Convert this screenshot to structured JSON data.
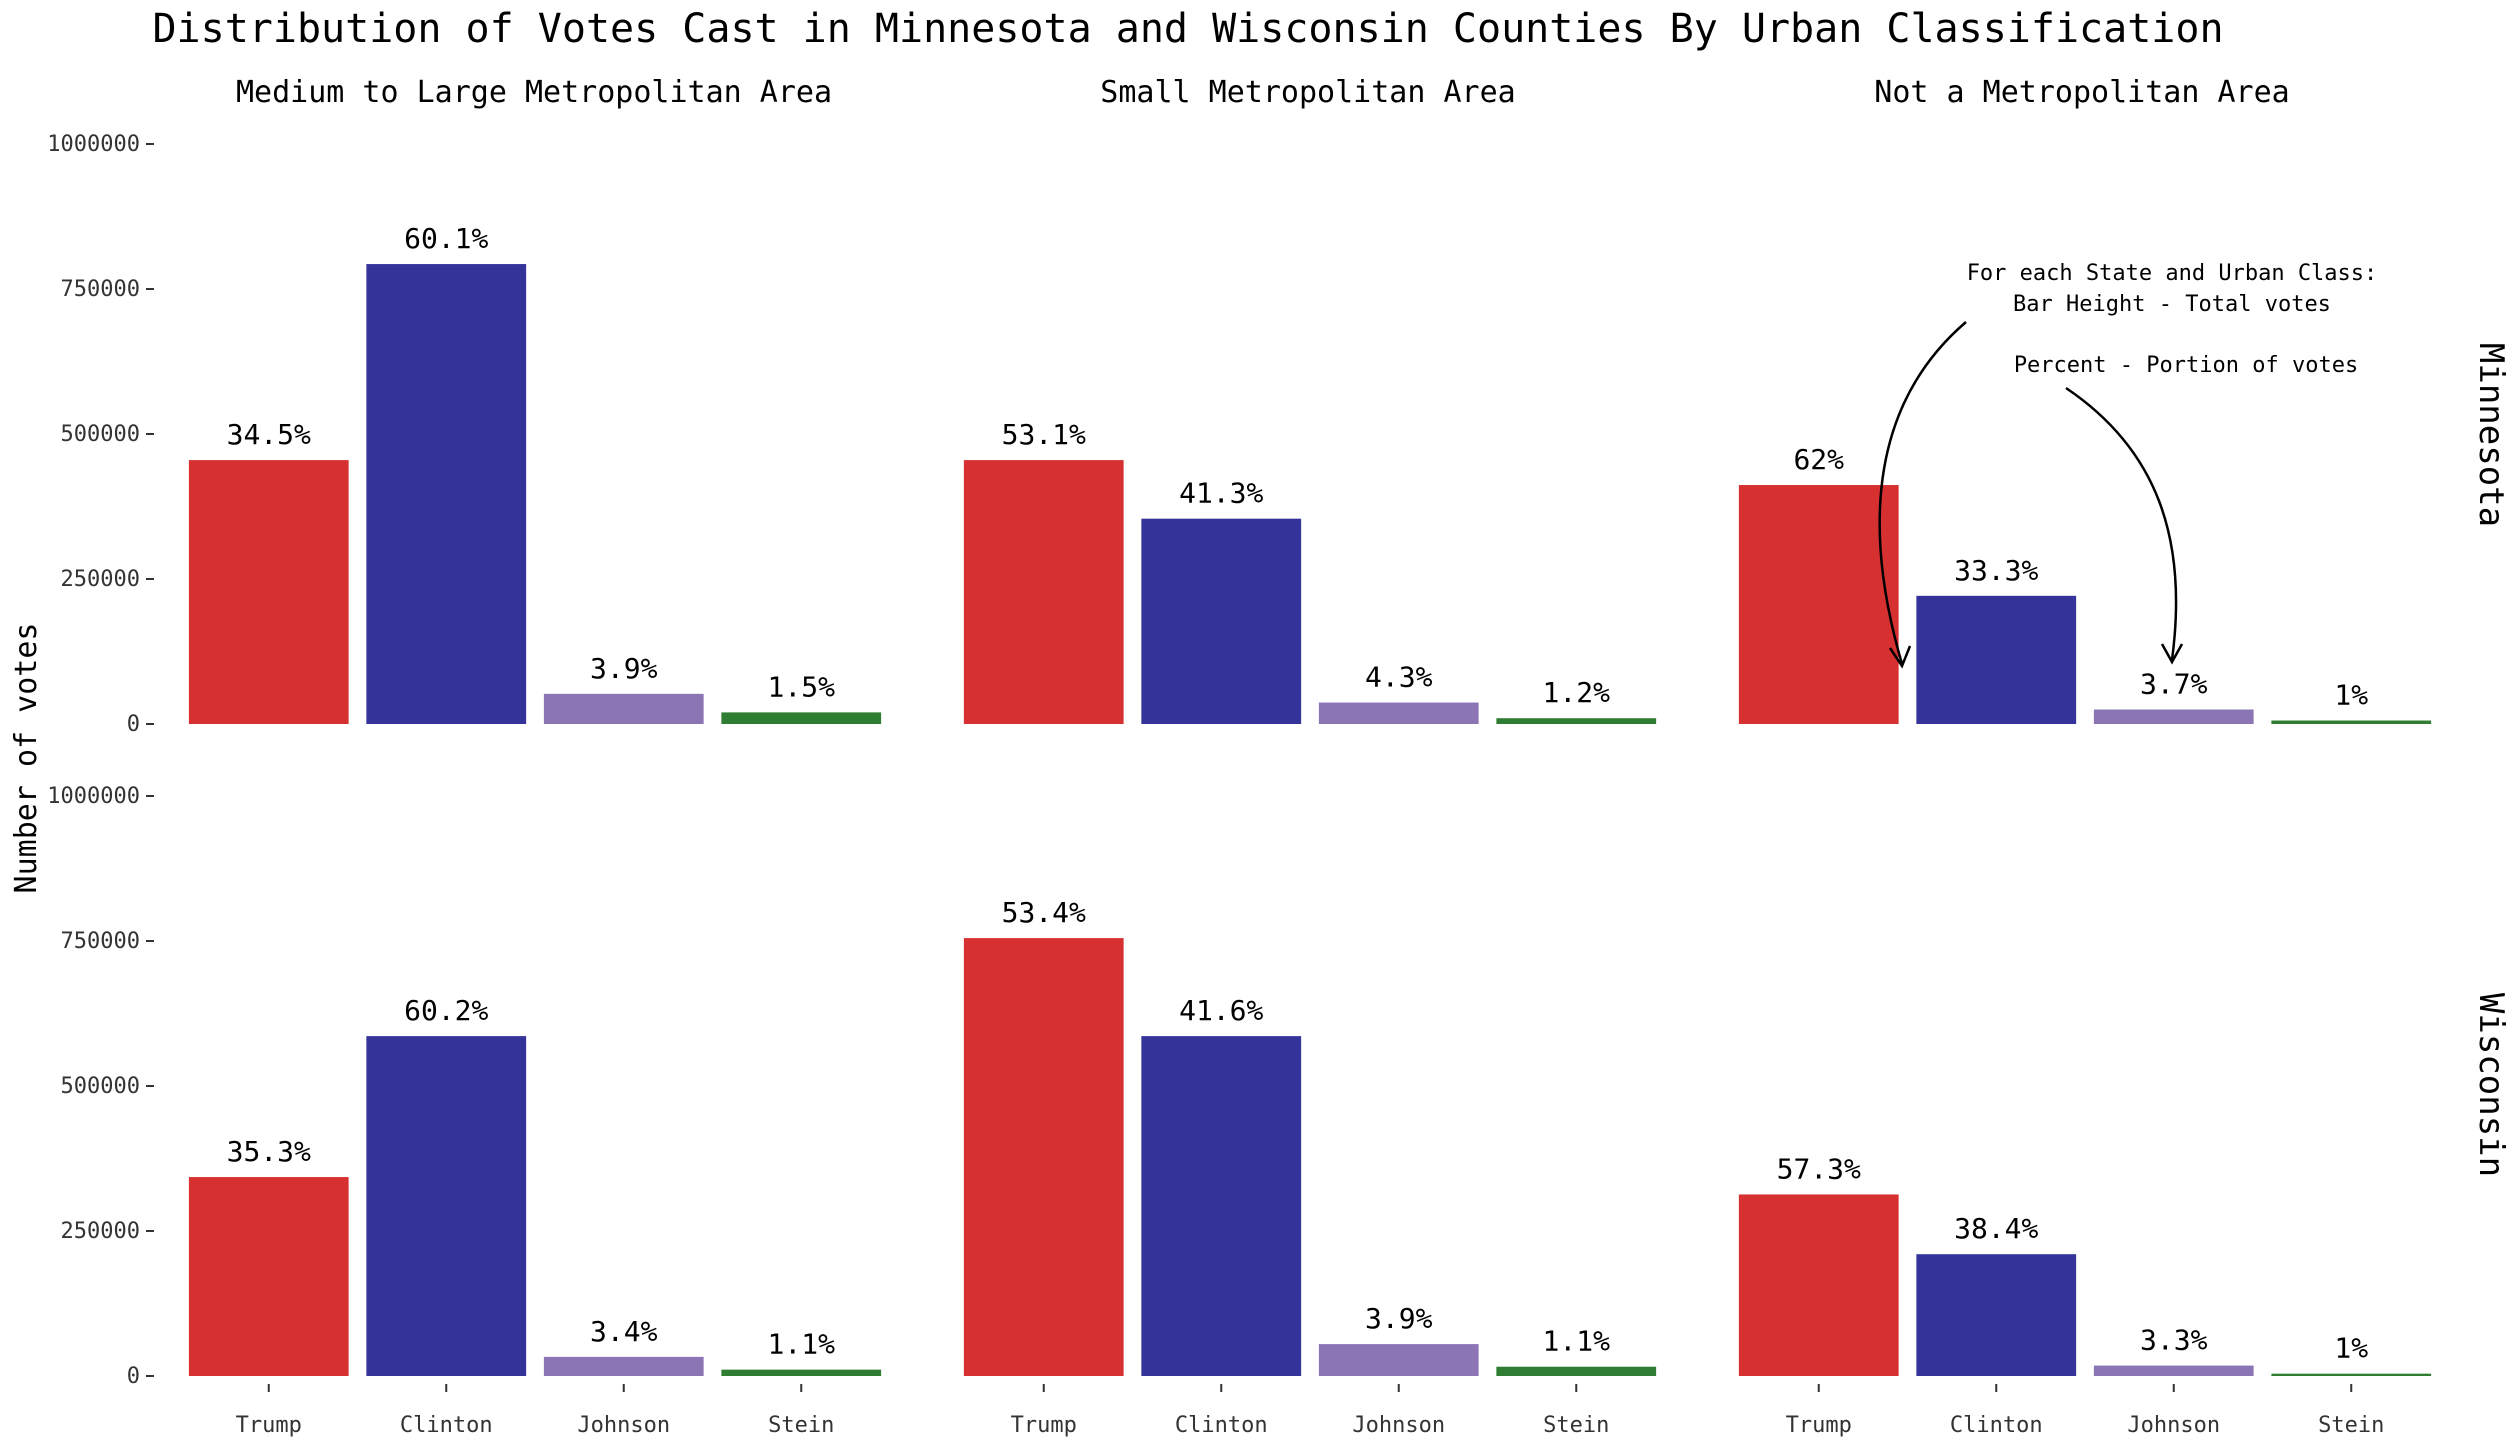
{
  "chart_data": {
    "type": "bar",
    "title": "Distribution of Votes Cast in Minnesota and Wisconsin Counties By Urban Classification",
    "ylabel": "Number of votes",
    "ylim": [
      0,
      1000000
    ],
    "yticks": [
      "0",
      "250000",
      "500000",
      "750000",
      "1000000"
    ],
    "ytick_values": [
      0,
      250000,
      500000,
      750000,
      1000000
    ],
    "categories": [
      "Trump",
      "Clinton",
      "Johnson",
      "Stein"
    ],
    "colors": [
      "#d63031",
      "#333399",
      "#8c75b5",
      "#2e7d32"
    ],
    "columns": [
      "Medium to Large Metropolitan Area",
      "Small Metropolitan Area",
      "Not a Metropolitan Area"
    ],
    "rows": [
      "Minnesota",
      "Wisconsin"
    ],
    "panels": [
      {
        "row": 0,
        "col": 0,
        "values": [
          455000,
          793000,
          52000,
          20000
        ],
        "labels": [
          "34.5%",
          "60.1%",
          "3.9%",
          "1.5%"
        ]
      },
      {
        "row": 0,
        "col": 1,
        "values": [
          455000,
          354000,
          37000,
          10000
        ],
        "labels": [
          "53.1%",
          "41.3%",
          "4.3%",
          "1.2%"
        ]
      },
      {
        "row": 0,
        "col": 2,
        "values": [
          412000,
          221000,
          25000,
          6000
        ],
        "labels": [
          "62%",
          "33.3%",
          "3.7%",
          "1%"
        ]
      },
      {
        "row": 1,
        "col": 0,
        "values": [
          343000,
          586000,
          33000,
          11000
        ],
        "labels": [
          "35.3%",
          "60.2%",
          "3.4%",
          "1.1%"
        ]
      },
      {
        "row": 1,
        "col": 1,
        "values": [
          755000,
          586000,
          55000,
          16000
        ],
        "labels": [
          "53.4%",
          "41.6%",
          "3.9%",
          "1.1%"
        ]
      },
      {
        "row": 1,
        "col": 2,
        "values": [
          313000,
          210000,
          18000,
          4000
        ],
        "labels": [
          "57.3%",
          "38.4%",
          "3.3%",
          "1%"
        ]
      }
    ],
    "annotation": {
      "lines": [
        "For each State and Urban Class:",
        "Bar Height - Total votes",
        "",
        "Percent - Portion of votes"
      ]
    },
    "grid": false,
    "legend": "none"
  }
}
